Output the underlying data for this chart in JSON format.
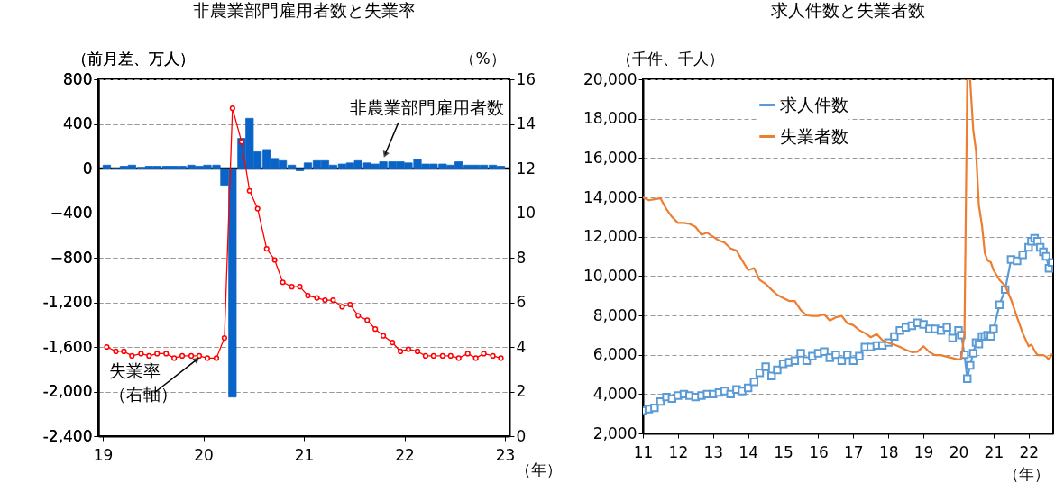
{
  "chart_data": [
    {
      "type": "bar",
      "title": "非農業部門雇用者数と失業率",
      "xlabel": "（年）",
      "ylabel": "（前月差、万人）",
      "y2label": "（%）",
      "x": [
        19.04,
        19.13,
        19.21,
        19.29,
        19.38,
        19.46,
        19.54,
        19.63,
        19.71,
        19.79,
        19.88,
        19.96,
        20.04,
        20.13,
        20.21,
        20.29,
        20.38,
        20.46,
        20.54,
        20.63,
        20.71,
        20.79,
        20.88,
        20.96,
        21.04,
        21.13,
        21.21,
        21.29,
        21.38,
        21.46,
        21.54,
        21.63,
        21.71,
        21.79,
        21.88,
        21.96,
        22.04,
        22.13,
        22.21,
        22.29,
        22.38,
        22.46,
        22.54,
        22.63,
        22.71,
        22.79,
        22.88,
        22.96
      ],
      "xlim": [
        19,
        23
      ],
      "xticks": [
        19,
        20,
        21,
        22,
        23
      ],
      "ylim": [
        -2400,
        800
      ],
      "yticks": [
        {
          "value": -2400,
          "label": "-2,400"
        },
        {
          "value": -2000,
          "label": "-2,000"
        },
        {
          "value": -1600,
          "label": "-1,600"
        },
        {
          "value": -1200,
          "label": "-1,200"
        },
        -800,
        -400,
        0,
        400,
        800
      ],
      "y2lim": [
        0,
        16
      ],
      "y2ticks": [
        0,
        2,
        4,
        6,
        8,
        10,
        12,
        14,
        16
      ],
      "grid": "y",
      "legend": false,
      "ref_lines": [
        {
          "axis": "y",
          "value": 0,
          "color": "#000000"
        }
      ],
      "series": [
        {
          "name": "非農業部門雇用者数",
          "color": "#0a64c8",
          "values": [
            30,
            0,
            20,
            30,
            10,
            20,
            20,
            20,
            20,
            20,
            30,
            20,
            30,
            30,
            -150,
            -2050,
            270,
            450,
            150,
            170,
            90,
            70,
            30,
            -20,
            50,
            70,
            70,
            30,
            40,
            50,
            70,
            50,
            40,
            60,
            60,
            60,
            50,
            80,
            40,
            40,
            40,
            30,
            60,
            30,
            30,
            30,
            30,
            20
          ]
        },
        {
          "name": "失業率（右軸）",
          "type": "line",
          "axis": "y2",
          "color": "#ff0000",
          "marker": "circle",
          "values": [
            4.0,
            3.8,
            3.8,
            3.6,
            3.7,
            3.6,
            3.7,
            3.7,
            3.5,
            3.6,
            3.6,
            3.6,
            3.5,
            3.5,
            4.4,
            14.7,
            13.2,
            11.0,
            10.2,
            8.4,
            7.9,
            6.9,
            6.7,
            6.7,
            6.3,
            6.2,
            6.1,
            6.1,
            5.8,
            5.9,
            5.4,
            5.2,
            4.8,
            4.5,
            4.2,
            3.8,
            3.9,
            3.8,
            3.6,
            3.6,
            3.6,
            3.6,
            3.5,
            3.7,
            3.5,
            3.7,
            3.6,
            3.5
          ]
        }
      ]
    },
    {
      "type": "line",
      "title": "求人件数と失業者数",
      "xlabel": "（年）",
      "ylabel": "（千件、千人）",
      "x": [
        11,
        11.17,
        11.33,
        11.5,
        11.67,
        11.83,
        12,
        12.17,
        12.33,
        12.5,
        12.67,
        12.83,
        13,
        13.17,
        13.33,
        13.5,
        13.67,
        13.83,
        14,
        14.17,
        14.33,
        14.5,
        14.67,
        14.83,
        15,
        15.17,
        15.33,
        15.5,
        15.67,
        15.83,
        16,
        16.17,
        16.33,
        16.5,
        16.67,
        16.83,
        17,
        17.17,
        17.33,
        17.5,
        17.67,
        17.83,
        18,
        18.17,
        18.33,
        18.5,
        18.67,
        18.83,
        19,
        19.17,
        19.33,
        19.5,
        19.67,
        19.83,
        20,
        20.08,
        20.17,
        20.25,
        20.33,
        20.42,
        20.5,
        20.58,
        20.67,
        20.75,
        20.83,
        20.92,
        21,
        21.17,
        21.33,
        21.5,
        21.67,
        21.83,
        22,
        22.08,
        22.17,
        22.25,
        22.33,
        22.42,
        22.5,
        22.58,
        22.67
      ],
      "xlim": [
        11,
        22.7
      ],
      "xticks": [
        11,
        12,
        13,
        14,
        15,
        16,
        17,
        18,
        19,
        20,
        21,
        22
      ],
      "ylim": [
        2000,
        20000
      ],
      "yticks": [
        {
          "value": 2000,
          "label": "2,000"
        },
        {
          "value": 4000,
          "label": "4,000"
        },
        {
          "value": 6000,
          "label": "6,000"
        },
        {
          "value": 8000,
          "label": "8,000"
        },
        {
          "value": 10000,
          "label": "10,000"
        },
        {
          "value": 12000,
          "label": "12,000"
        },
        {
          "value": 14000,
          "label": "14,000"
        },
        {
          "value": 16000,
          "label": "16,000"
        },
        {
          "value": 18000,
          "label": "18,000"
        },
        {
          "value": 20000,
          "label": "20,000"
        }
      ],
      "grid": "y",
      "legend": "top",
      "series": [
        {
          "name": "求人件数",
          "color": "#5b9bd5",
          "marker": "square",
          "values": [
            3160,
            3240,
            3300,
            3620,
            3850,
            3770,
            3920,
            4000,
            3920,
            3850,
            3920,
            4000,
            4000,
            4080,
            4150,
            4000,
            4230,
            4150,
            4310,
            4620,
            5080,
            5390,
            4920,
            5230,
            5540,
            5620,
            5700,
            6080,
            5700,
            5930,
            6080,
            6160,
            5850,
            6000,
            5700,
            6000,
            5700,
            5930,
            6390,
            6390,
            6470,
            6470,
            6620,
            6930,
            7230,
            7390,
            7470,
            7620,
            7540,
            7310,
            7310,
            7230,
            7390,
            6850,
            7230,
            7000,
            6000,
            4780,
            5460,
            6080,
            6620,
            6540,
            6930,
            6930,
            7000,
            6930,
            7310,
            8540,
            9310,
            10840,
            10770,
            11080,
            11460,
            11770,
            11920,
            11770,
            11460,
            11230,
            11000,
            10390,
            10690
          ]
        },
        {
          "name": "失業者数",
          "color": "#ed7d31",
          "marker": "none",
          "values": [
            14000,
            13850,
            13900,
            13950,
            13400,
            13000,
            12700,
            12700,
            12650,
            12500,
            12100,
            12200,
            12000,
            11800,
            11700,
            11400,
            11300,
            10800,
            10300,
            10400,
            9800,
            9600,
            9300,
            9040,
            8880,
            8730,
            8730,
            8270,
            8000,
            7970,
            7970,
            8050,
            7740,
            7900,
            7970,
            7600,
            7500,
            7250,
            7100,
            6890,
            7050,
            6740,
            6600,
            6510,
            6400,
            6250,
            6130,
            6150,
            6430,
            6130,
            5980,
            5980,
            5900,
            5830,
            5750,
            5800,
            7100,
            20000,
            20000,
            17420,
            16350,
            13600,
            12560,
            11170,
            10790,
            10700,
            10300,
            9800,
            9500,
            8800,
            7900,
            7100,
            6430,
            6510,
            6200,
            5980,
            5980,
            5980,
            5900,
            5750,
            6050
          ]
        }
      ]
    }
  ]
}
